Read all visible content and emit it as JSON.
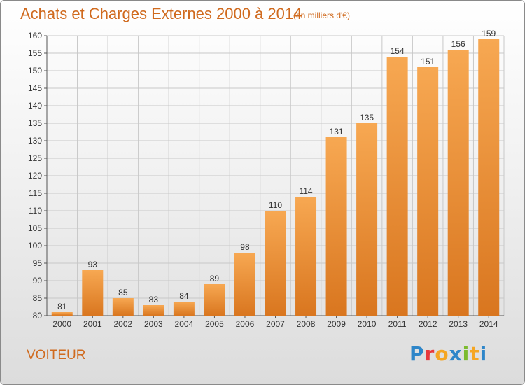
{
  "title": "Achats et Charges Externes 2000 à 2014",
  "subtitle": "(en milliers d'€)",
  "commune": "VOITEUR",
  "logo": {
    "text": "Proxiti",
    "letters": [
      {
        "ch": "P",
        "color": "#2e86c9"
      },
      {
        "ch": "r",
        "color": "#e8383b"
      },
      {
        "ch": "o",
        "color": "#f5a623"
      },
      {
        "ch": "x",
        "color": "#2e86c9"
      },
      {
        "ch": "i",
        "color": "#7cbb2e"
      },
      {
        "ch": "t",
        "color": "#f5a623"
      },
      {
        "ch": "i",
        "color": "#2e86c9"
      }
    ]
  },
  "colors": {
    "bar_light": "#f7a852",
    "bar_dark": "#d9761f",
    "grid": "#c8c8c8",
    "title": "#d06a1e"
  },
  "chart_data": {
    "type": "bar",
    "categories": [
      "2000",
      "2001",
      "2002",
      "2003",
      "2004",
      "2005",
      "2006",
      "2007",
      "2008",
      "2009",
      "2010",
      "2011",
      "2012",
      "2013",
      "2014"
    ],
    "values": [
      81,
      93,
      85,
      83,
      84,
      89,
      98,
      110,
      114,
      131,
      135,
      154,
      151,
      156,
      159
    ],
    "ylim": [
      80,
      160
    ],
    "yticks": [
      80,
      85,
      90,
      95,
      100,
      105,
      110,
      115,
      120,
      125,
      130,
      135,
      140,
      145,
      150,
      155,
      160
    ],
    "grid": true,
    "xlabel": "",
    "ylabel": ""
  }
}
